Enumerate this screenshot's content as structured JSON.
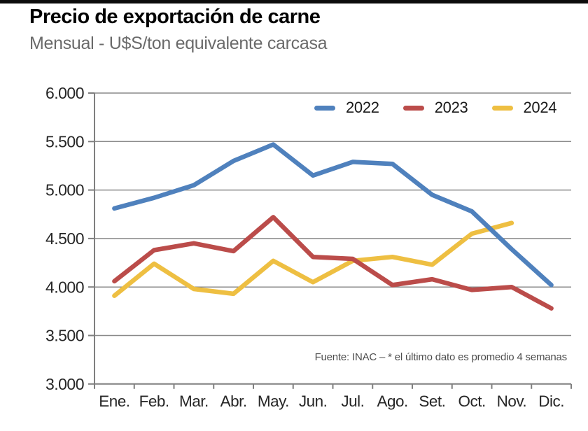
{
  "header": {
    "title": "Precio de exportación de carne",
    "subtitle": "Mensual - U$S/ton equivalente carcasa"
  },
  "footer": {
    "source_note": "Fuente: INAC – * el último dato es promedio 4 semanas"
  },
  "chart_data": {
    "type": "line",
    "title": "Precio de exportación de carne",
    "subtitle": "Mensual - U$S/ton equivalente carcasa",
    "unit": "U$S/ton equivalente carcasa",
    "categories": [
      "Ene.",
      "Feb.",
      "Mar.",
      "Abr.",
      "May.",
      "Jun.",
      "Jul.",
      "Ago.",
      "Set.",
      "Oct.",
      "Nov.",
      "Dic."
    ],
    "series": [
      {
        "name": "2022",
        "color": "#4f81bd",
        "values": [
          4810,
          4920,
          5050,
          5300,
          5470,
          5150,
          5290,
          5270,
          4950,
          4780,
          4390,
          4020
        ]
      },
      {
        "name": "2023",
        "color": "#bb4c4a",
        "values": [
          4060,
          4380,
          4450,
          4370,
          4720,
          4310,
          4290,
          4020,
          4080,
          3970,
          4000,
          3780
        ]
      },
      {
        "name": "2024",
        "color": "#eebf42",
        "values": [
          3910,
          4240,
          3980,
          3930,
          4270,
          4050,
          4270,
          4310,
          4230,
          4550,
          4660,
          null
        ]
      }
    ],
    "ylim": [
      3000,
      6000
    ],
    "ytick_step": 500,
    "ytick_labels": [
      "6.000",
      "5.500",
      "5.000",
      "4.500",
      "4.000",
      "3.500",
      "3.000"
    ],
    "grid": true,
    "legend_position": "top-right-inside",
    "colors": {
      "grid": "#8a8a8a",
      "axis": "#7f7f7f",
      "tick_label": "#262626"
    }
  }
}
